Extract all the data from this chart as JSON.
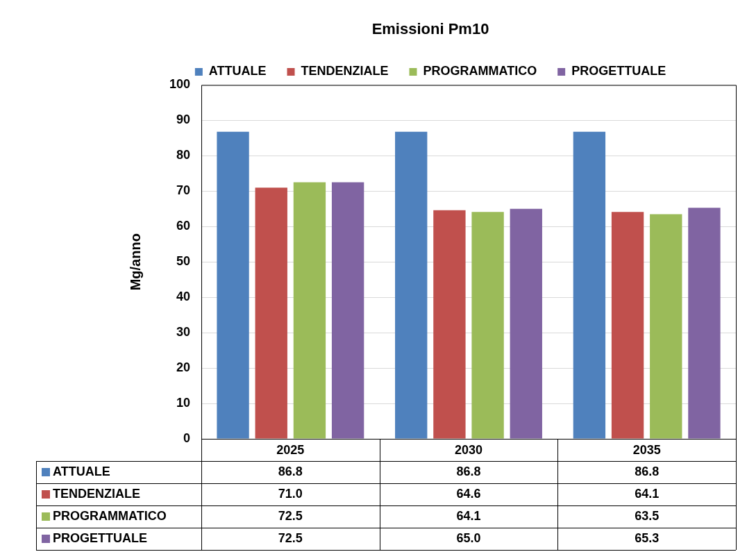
{
  "chart_data": {
    "type": "bar",
    "title": "Emissioni Pm10",
    "ylabel": "Mg/anno",
    "categories": [
      "2025",
      "2030",
      "2035"
    ],
    "series": [
      {
        "name": "ATTUALE",
        "color": "#4f81bd",
        "values": [
          86.8,
          86.8,
          86.8
        ],
        "value_labels": [
          "86.8",
          "86.8",
          "86.8"
        ]
      },
      {
        "name": "TENDENZIALE",
        "color": "#c0504d",
        "values": [
          71.0,
          64.6,
          64.1
        ],
        "value_labels": [
          "71.0",
          "64.6",
          "64.1"
        ]
      },
      {
        "name": "PROGRAMMATICO",
        "color": "#9bbb59",
        "values": [
          72.5,
          64.1,
          63.5
        ],
        "value_labels": [
          "72.5",
          "64.1",
          "63.5"
        ]
      },
      {
        "name": "PROGETTUALE",
        "color": "#8064a2",
        "values": [
          72.5,
          65.0,
          65.3
        ],
        "value_labels": [
          "72.5",
          "65.0",
          "65.3"
        ]
      }
    ],
    "ylim": [
      0,
      100
    ],
    "yticks": [
      0,
      10,
      20,
      30,
      40,
      50,
      60,
      70,
      80,
      90,
      100
    ],
    "grid": "y",
    "legend": "top"
  }
}
